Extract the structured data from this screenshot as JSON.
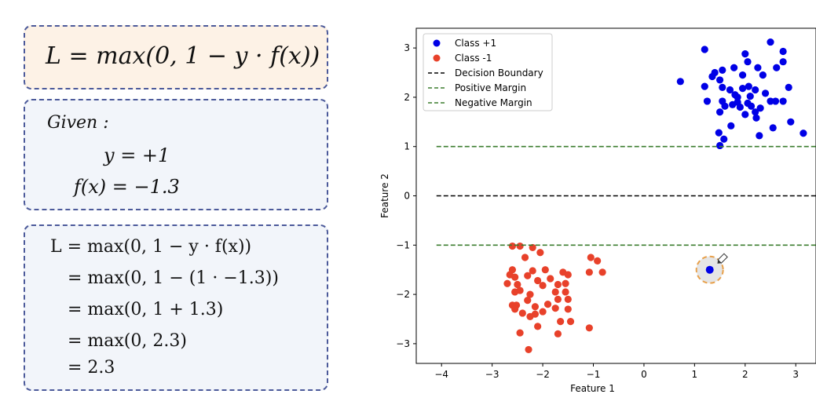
{
  "formula_panel": {
    "loss_formula": "L = max(0, 1 − y · f(x))",
    "given_title": "Given :",
    "given_y": "y = +1",
    "given_fx": "f(x) = −1.3",
    "steps": [
      "L = max(0, 1 − y · f(x))",
      "= max(0, 1 − (1 · −1.3))",
      "= max(0, 1 + 1.3)",
      "= max(0, 2.3)",
      "= 2.3"
    ]
  },
  "colors": {
    "class_pos": "#0000e6",
    "class_neg": "#e8412a",
    "boundary": "#000000",
    "margin": "#3b7d2f",
    "highlight_ring": "#e8a04a"
  },
  "chart_data": {
    "type": "scatter",
    "xlabel": "Feature 1",
    "ylabel": "Feature 2",
    "xlim": [
      -4.5,
      3.4
    ],
    "ylim": [
      -3.4,
      3.4
    ],
    "xticks": [
      -4,
      -3,
      -2,
      -1,
      0,
      1,
      2,
      3
    ],
    "yticks": [
      -3,
      -2,
      -1,
      0,
      1,
      2,
      3
    ],
    "xtick_labels": [
      "−4",
      "−3",
      "−2",
      "−1",
      "0",
      "1",
      "2",
      "3"
    ],
    "ytick_labels": [
      "−3",
      "−2",
      "−1",
      "0",
      "1",
      "2",
      "3"
    ],
    "legend_position": "top-left",
    "series": [
      {
        "name": "Class +1",
        "kind": "points",
        "color": "#0000e6",
        "points": [
          [
            1.2,
            2.97
          ],
          [
            2.5,
            3.12
          ],
          [
            2.0,
            2.88
          ],
          [
            2.75,
            2.93
          ],
          [
            2.75,
            2.72
          ],
          [
            2.62,
            2.6
          ],
          [
            2.25,
            2.6
          ],
          [
            2.05,
            2.72
          ],
          [
            1.78,
            2.6
          ],
          [
            1.4,
            2.5
          ],
          [
            1.5,
            2.35
          ],
          [
            1.35,
            2.42
          ],
          [
            0.72,
            2.32
          ],
          [
            1.2,
            2.22
          ],
          [
            1.55,
            2.2
          ],
          [
            1.7,
            2.15
          ],
          [
            1.95,
            2.18
          ],
          [
            2.07,
            2.22
          ],
          [
            2.2,
            2.15
          ],
          [
            2.4,
            2.08
          ],
          [
            2.86,
            2.2
          ],
          [
            1.8,
            2.05
          ],
          [
            2.1,
            2.02
          ],
          [
            1.25,
            1.92
          ],
          [
            1.55,
            1.92
          ],
          [
            1.85,
            1.9
          ],
          [
            2.05,
            1.88
          ],
          [
            2.12,
            1.82
          ],
          [
            2.5,
            1.92
          ],
          [
            2.6,
            1.92
          ],
          [
            2.75,
            1.92
          ],
          [
            1.6,
            1.82
          ],
          [
            1.75,
            1.85
          ],
          [
            1.9,
            1.8
          ],
          [
            2.3,
            1.78
          ],
          [
            2.2,
            1.7
          ],
          [
            1.5,
            1.7
          ],
          [
            2.22,
            1.58
          ],
          [
            2.0,
            1.65
          ],
          [
            2.55,
            1.38
          ],
          [
            1.72,
            1.42
          ],
          [
            2.9,
            1.5
          ],
          [
            1.48,
            1.28
          ],
          [
            2.28,
            1.22
          ],
          [
            3.15,
            1.27
          ],
          [
            1.58,
            1.15
          ],
          [
            1.5,
            1.02
          ],
          [
            1.55,
            2.55
          ],
          [
            1.85,
            2.0
          ],
          [
            2.35,
            2.45
          ],
          [
            1.95,
            2.45
          ]
        ]
      },
      {
        "name": "Class -1",
        "kind": "points",
        "color": "#e8412a",
        "points": [
          [
            -2.6,
            -1.02
          ],
          [
            -2.45,
            -1.02
          ],
          [
            -2.2,
            -1.05
          ],
          [
            -2.05,
            -1.15
          ],
          [
            -2.35,
            -1.25
          ],
          [
            -1.05,
            -1.25
          ],
          [
            -0.92,
            -1.32
          ],
          [
            -2.6,
            -1.5
          ],
          [
            -2.65,
            -1.6
          ],
          [
            -2.2,
            -1.52
          ],
          [
            -1.95,
            -1.5
          ],
          [
            -1.6,
            -1.55
          ],
          [
            -1.5,
            -1.6
          ],
          [
            -1.08,
            -1.55
          ],
          [
            -0.82,
            -1.55
          ],
          [
            -2.55,
            -1.65
          ],
          [
            -2.3,
            -1.62
          ],
          [
            -2.1,
            -1.72
          ],
          [
            -1.85,
            -1.68
          ],
          [
            -2.5,
            -1.8
          ],
          [
            -2.0,
            -1.82
          ],
          [
            -1.7,
            -1.8
          ],
          [
            -1.55,
            -1.78
          ],
          [
            -2.55,
            -1.95
          ],
          [
            -2.45,
            -1.92
          ],
          [
            -2.25,
            -2.0
          ],
          [
            -1.75,
            -1.95
          ],
          [
            -1.55,
            -1.95
          ],
          [
            -1.7,
            -2.1
          ],
          [
            -1.5,
            -2.1
          ],
          [
            -2.6,
            -2.22
          ],
          [
            -2.52,
            -2.22
          ],
          [
            -2.3,
            -2.12
          ],
          [
            -2.15,
            -2.25
          ],
          [
            -1.9,
            -2.2
          ],
          [
            -1.75,
            -2.28
          ],
          [
            -1.5,
            -2.3
          ],
          [
            -2.55,
            -2.3
          ],
          [
            -2.4,
            -2.38
          ],
          [
            -2.25,
            -2.45
          ],
          [
            -2.15,
            -2.4
          ],
          [
            -2.0,
            -2.35
          ],
          [
            -1.65,
            -2.55
          ],
          [
            -1.45,
            -2.55
          ],
          [
            -2.1,
            -2.65
          ],
          [
            -2.45,
            -2.78
          ],
          [
            -1.7,
            -2.8
          ],
          [
            -1.08,
            -2.68
          ],
          [
            -2.28,
            -3.12
          ],
          [
            -2.7,
            -1.78
          ]
        ]
      },
      {
        "name": "Decision Boundary",
        "kind": "hline",
        "y": 0,
        "color": "#000000"
      },
      {
        "name": "Positive Margin",
        "kind": "hline",
        "y": 1,
        "color": "#3b7d2f"
      },
      {
        "name": "Negative Margin",
        "kind": "hline",
        "y": -1,
        "color": "#3b7d2f"
      }
    ],
    "highlight_point": {
      "x": 1.3,
      "y": -1.5,
      "color": "#0000e6"
    }
  }
}
